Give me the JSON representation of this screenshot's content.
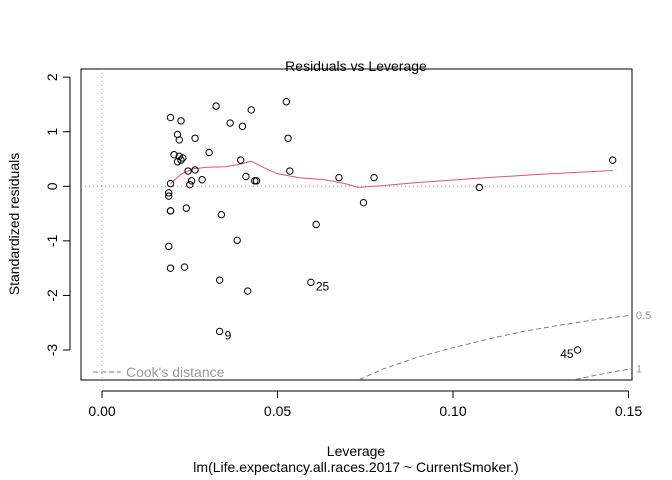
{
  "chart_data": {
    "type": "scatter",
    "title": "Residuals vs Leverage",
    "xlabel": "Leverage",
    "ylabel": "Standardized residuals",
    "subtitle": "lm(Life.expectancy.all.races.2017 ~ CurrentSmoker.)",
    "xlim": [
      -0.006,
      0.151
    ],
    "ylim": [
      -3.55,
      2.15
    ],
    "xticks": [
      0.0,
      0.05,
      0.1,
      0.15
    ],
    "xtick_labels": [
      "0.00",
      "0.05",
      "0.10",
      "0.15"
    ],
    "yticks": [
      -3,
      -2,
      -1,
      0,
      1,
      2
    ],
    "ytick_labels": [
      "-3",
      "-2",
      "-1",
      "0",
      "1",
      "2"
    ],
    "grid": false,
    "legend": {
      "position": "bottom-left",
      "entries": [
        "Cook's distance"
      ]
    },
    "colors": {
      "smooth": "#DF536B",
      "points": "#000000",
      "reference": "#999999",
      "cook": "#808080"
    },
    "points": [
      {
        "x": 0.0195,
        "y": 1.26
      },
      {
        "x": 0.0225,
        "y": 1.2
      },
      {
        "x": 0.0215,
        "y": 0.95
      },
      {
        "x": 0.022,
        "y": 0.85
      },
      {
        "x": 0.0205,
        "y": 0.58
      },
      {
        "x": 0.022,
        "y": 0.55
      },
      {
        "x": 0.0225,
        "y": 0.48
      },
      {
        "x": 0.023,
        "y": 0.52
      },
      {
        "x": 0.0215,
        "y": 0.45
      },
      {
        "x": 0.0245,
        "y": 0.28
      },
      {
        "x": 0.0265,
        "y": 0.3
      },
      {
        "x": 0.0255,
        "y": 0.1
      },
      {
        "x": 0.025,
        "y": 0.03
      },
      {
        "x": 0.0195,
        "y": 0.05
      },
      {
        "x": 0.019,
        "y": -0.12
      },
      {
        "x": 0.019,
        "y": -0.18
      },
      {
        "x": 0.0195,
        "y": -0.45
      },
      {
        "x": 0.0195,
        "y": -0.45
      },
      {
        "x": 0.024,
        "y": -0.4
      },
      {
        "x": 0.019,
        "y": -1.1
      },
      {
        "x": 0.0195,
        "y": -1.5
      },
      {
        "x": 0.0235,
        "y": -1.48
      },
      {
        "x": 0.0265,
        "y": 0.88
      },
      {
        "x": 0.0285,
        "y": 0.12
      },
      {
        "x": 0.0305,
        "y": 0.62
      },
      {
        "x": 0.0325,
        "y": 1.47
      },
      {
        "x": 0.034,
        "y": -0.52
      },
      {
        "x": 0.0365,
        "y": 1.16
      },
      {
        "x": 0.0385,
        "y": -0.99
      },
      {
        "x": 0.0395,
        "y": 0.48
      },
      {
        "x": 0.04,
        "y": 1.1
      },
      {
        "x": 0.041,
        "y": 0.18
      },
      {
        "x": 0.0425,
        "y": 1.4
      },
      {
        "x": 0.0435,
        "y": 0.1
      },
      {
        "x": 0.044,
        "y": 0.1
      },
      {
        "x": 0.0335,
        "y": -1.72
      },
      {
        "x": 0.0415,
        "y": -1.92
      },
      {
        "x": 0.0525,
        "y": 1.55
      },
      {
        "x": 0.053,
        "y": 0.88
      },
      {
        "x": 0.0535,
        "y": 0.28
      },
      {
        "x": 0.061,
        "y": -0.7
      },
      {
        "x": 0.0675,
        "y": 0.16
      },
      {
        "x": 0.0745,
        "y": -0.3
      },
      {
        "x": 0.0775,
        "y": 0.16
      },
      {
        "x": 0.1075,
        "y": -0.02
      },
      {
        "x": 0.1455,
        "y": 0.48
      }
    ],
    "labeled_points": [
      {
        "label": "25",
        "x": 0.0595,
        "y": -1.76
      },
      {
        "label": "9",
        "x": 0.0335,
        "y": -2.66
      },
      {
        "label": "45",
        "x": 0.1355,
        "y": -3.0
      }
    ],
    "smooth_line": [
      {
        "x": 0.0195,
        "y": 0.05
      },
      {
        "x": 0.0225,
        "y": 0.22
      },
      {
        "x": 0.026,
        "y": 0.32
      },
      {
        "x": 0.03,
        "y": 0.35
      },
      {
        "x": 0.035,
        "y": 0.36
      },
      {
        "x": 0.039,
        "y": 0.4
      },
      {
        "x": 0.0425,
        "y": 0.46
      },
      {
        "x": 0.0455,
        "y": 0.36
      },
      {
        "x": 0.05,
        "y": 0.23
      },
      {
        "x": 0.056,
        "y": 0.16
      },
      {
        "x": 0.0635,
        "y": 0.12
      },
      {
        "x": 0.0685,
        "y": 0.06
      },
      {
        "x": 0.073,
        "y": -0.02
      },
      {
        "x": 0.0775,
        "y": 0.0
      },
      {
        "x": 0.09,
        "y": 0.07
      },
      {
        "x": 0.1075,
        "y": 0.15
      },
      {
        "x": 0.125,
        "y": 0.22
      },
      {
        "x": 0.1455,
        "y": 0.29
      }
    ],
    "cook_contours": [
      {
        "label": "0.5",
        "points": [
          {
            "x": 0.0635,
            "y": -3.9
          },
          {
            "x": 0.07,
            "y": -3.64
          },
          {
            "x": 0.08,
            "y": -3.35
          },
          {
            "x": 0.09,
            "y": -3.13
          },
          {
            "x": 0.1,
            "y": -2.96
          },
          {
            "x": 0.11,
            "y": -2.8
          },
          {
            "x": 0.12,
            "y": -2.66
          },
          {
            "x": 0.13,
            "y": -2.55
          },
          {
            "x": 0.14,
            "y": -2.45
          },
          {
            "x": 0.151,
            "y": -2.36
          }
        ]
      },
      {
        "label": "1",
        "points": [
          {
            "x": 0.1,
            "y": -4.2
          },
          {
            "x": 0.11,
            "y": -3.97
          },
          {
            "x": 0.12,
            "y": -3.77
          },
          {
            "x": 0.13,
            "y": -3.61
          },
          {
            "x": 0.14,
            "y": -3.47
          },
          {
            "x": 0.151,
            "y": -3.34
          }
        ]
      }
    ]
  }
}
